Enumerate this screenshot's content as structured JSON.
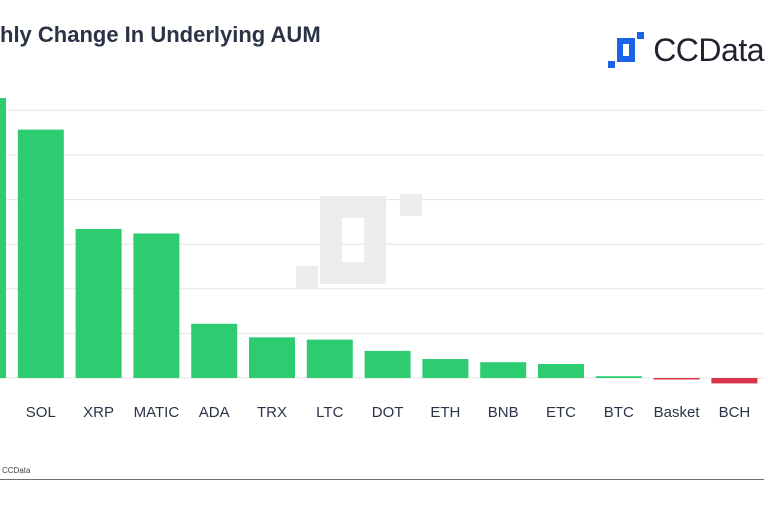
{
  "title": "hly Change In Underlying AUM",
  "brand": {
    "name": "CCData",
    "logo_icon": "ccdata-logo-icon",
    "logo_color": "#1d63e8"
  },
  "source": "CCData",
  "colors": {
    "positive": "#2ecc71",
    "negative": "#d9344b",
    "grid": "#e4e4e4",
    "watermark": "#ececec",
    "text": "#2b3347"
  },
  "chart_data": {
    "type": "bar",
    "title": "hly Change In Underlying AUM",
    "xlabel": "",
    "ylabel": "",
    "grid": true,
    "legend": "none",
    "ylim": [
      -0.15,
      6.2
    ],
    "categories": [
      "",
      "SOL",
      "XRP",
      "MATIC",
      "ADA",
      "TRX",
      "LTC",
      "DOT",
      "ETH",
      "BNB",
      "ETC",
      "BTC",
      "Basket",
      "BCH"
    ],
    "values": [
      6.2,
      5.5,
      3.3,
      3.2,
      1.2,
      0.9,
      0.85,
      0.6,
      0.42,
      0.35,
      0.31,
      0.04,
      -0.02,
      -0.12
    ]
  }
}
